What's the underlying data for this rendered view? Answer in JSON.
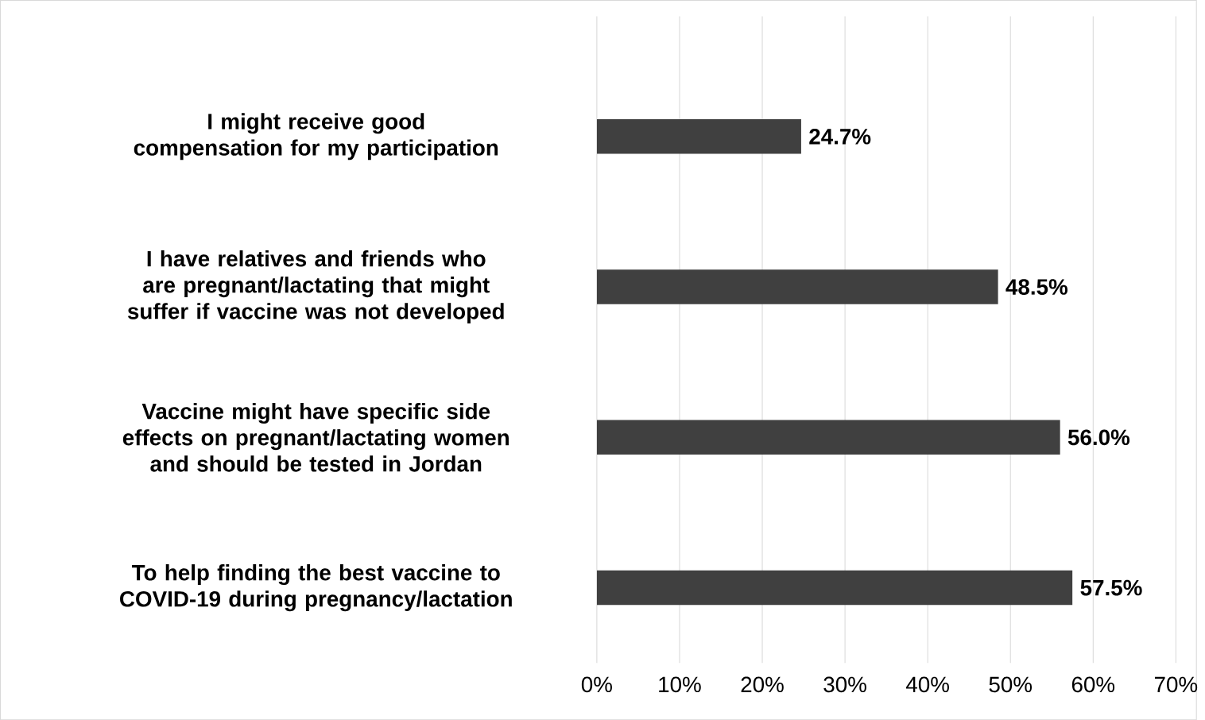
{
  "chart_data": {
    "type": "bar",
    "orientation": "horizontal",
    "categories": [
      "I might receive good compensation for my participation",
      "I have relatives and friends who are pregnant/lactating that might suffer if vaccine was not developed",
      "Vaccine might have specific side effects on pregnant/lactating women and should be tested in Jordan",
      "To help finding the best vaccine to COVID-19 during pregnancy/lactation"
    ],
    "values": [
      24.7,
      48.5,
      56.0,
      57.5
    ],
    "value_labels": [
      "24.7%",
      "48.5%",
      "56.0%",
      "57.5%"
    ],
    "color": "#404040",
    "xlim": [
      0,
      70
    ],
    "xticks": [
      {
        "value": 0,
        "label": "0%"
      },
      {
        "value": 10,
        "label": "10%"
      },
      {
        "value": 20,
        "label": "20%"
      },
      {
        "value": 30,
        "label": "30%"
      },
      {
        "value": 40,
        "label": "40%"
      },
      {
        "value": 50,
        "label": "50%"
      },
      {
        "value": 60,
        "label": "60%"
      },
      {
        "value": 70,
        "label": "70%"
      }
    ],
    "grid": "x"
  }
}
